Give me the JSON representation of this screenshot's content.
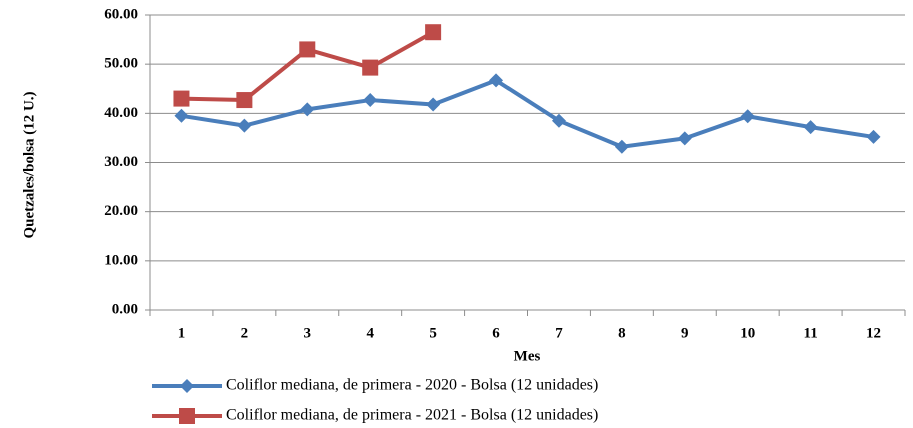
{
  "chart_data": {
    "type": "line",
    "y_label": "Quetzales/bolsa (12 U.)",
    "x_label": "Mes",
    "categories": [
      "1",
      "2",
      "3",
      "4",
      "5",
      "6",
      "7",
      "8",
      "9",
      "10",
      "11",
      "12"
    ],
    "series": [
      {
        "name": "Coliflor mediana, de primera - 2020 - Bolsa (12 unidades)",
        "color": "#4a7ebb",
        "marker": "diamond",
        "values": [
          39.5,
          37.5,
          40.8,
          42.7,
          41.8,
          46.7,
          38.5,
          33.2,
          34.9,
          39.4,
          37.2,
          35.2
        ]
      },
      {
        "name": "Coliflor mediana, de primera - 2021 - Bolsa (12 unidades)",
        "color": "#be4b48",
        "marker": "square",
        "values": [
          43.0,
          42.7,
          53.0,
          49.3,
          56.5,
          null,
          null,
          null,
          null,
          null,
          null,
          null
        ]
      }
    ],
    "ylim": [
      0,
      60
    ],
    "yticks": [
      {
        "value": 0,
        "label": "0.00"
      },
      {
        "value": 10,
        "label": "10.00"
      },
      {
        "value": 20,
        "label": "20.00"
      },
      {
        "value": 30,
        "label": "30.00"
      },
      {
        "value": 40,
        "label": "40.00"
      },
      {
        "value": 50,
        "label": "50.00"
      },
      {
        "value": 60,
        "label": "60.00"
      }
    ],
    "grid": true,
    "legend": "bottom"
  }
}
